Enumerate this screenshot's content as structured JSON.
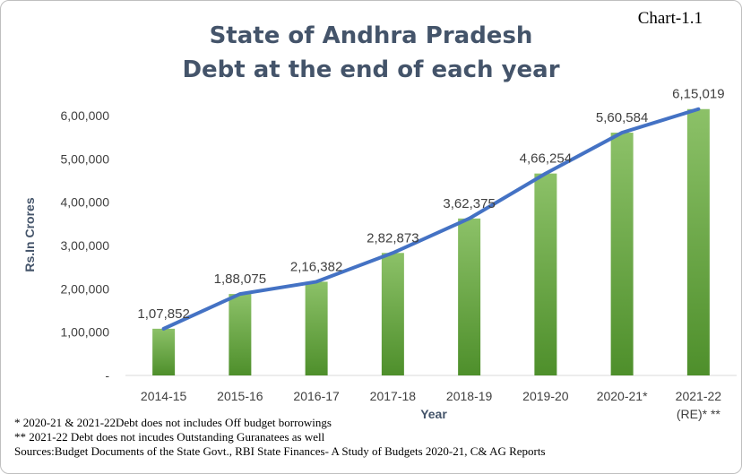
{
  "tag": "Chart-1.1",
  "chart_data": {
    "type": "bar",
    "title": "State of Andhra Pradesh",
    "subtitle": "Debt at the end of each year",
    "xlabel": "Year",
    "ylabel": "Rs.In Crores",
    "categories": [
      "2014-15",
      "2015-16",
      "2016-17",
      "2017-18",
      "2018-19",
      "2019-20",
      "2020-21*",
      "2021-22 (RE)* **"
    ],
    "category_lines": [
      [
        "2014-15"
      ],
      [
        "2015-16"
      ],
      [
        "2016-17"
      ],
      [
        "2017-18"
      ],
      [
        "2018-19"
      ],
      [
        "2019-20"
      ],
      [
        "2020-21*"
      ],
      [
        "2021-22",
        "(RE)* **"
      ]
    ],
    "series": [
      {
        "type": "bar",
        "values": [
          107852,
          188075,
          216382,
          282873,
          362375,
          466254,
          560584,
          615019
        ],
        "color": "#70ad47"
      },
      {
        "type": "line",
        "values": [
          107852,
          188075,
          216382,
          282873,
          362375,
          466254,
          560584,
          615019
        ],
        "color": "#4472c4"
      }
    ],
    "data_labels": [
      "1,07,852",
      "1,88,075",
      "2,16,382",
      "2,82,873",
      "3,62,375",
      "4,66,254",
      "5,60,584",
      "6,15,019"
    ],
    "ylim": [
      0,
      600000
    ],
    "yticks": [
      0,
      100000,
      200000,
      300000,
      400000,
      500000,
      600000
    ],
    "ytick_labels": [
      "-",
      "1,00,000",
      "2,00,000",
      "3,00,000",
      "4,00,000",
      "5,00,000",
      "6,00,000"
    ],
    "grid": false,
    "legend": "none"
  },
  "notes": [
    "* 2020-21 & 2021-22Debt does not includes Off budget borrowings",
    "** 2021-22 Debt does not incudes Outstanding Guranatees as well",
    "Sources:Budget Documents of the State Govt., RBI State Finances- A Study of Budgets 2020-21, C& AG Reports"
  ]
}
